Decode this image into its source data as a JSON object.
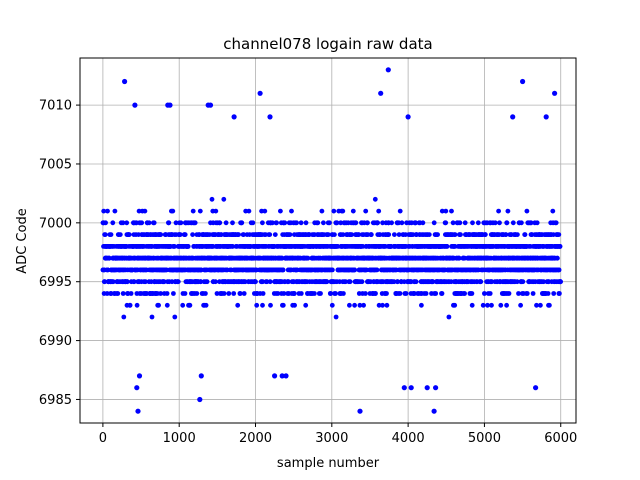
{
  "chart_data": {
    "type": "scatter",
    "title": "channel078 logain raw data",
    "xlabel": "sample number",
    "ylabel": "ADC Code",
    "xlim": [
      -300,
      6200
    ],
    "ylim": [
      6983,
      7014
    ],
    "xticks": [
      0,
      1000,
      2000,
      3000,
      4000,
      5000,
      6000
    ],
    "yticks": [
      6985,
      6990,
      6995,
      7000,
      7005,
      7010
    ],
    "grid": true,
    "marker_color": "#0000ff",
    "sample_count": 6000,
    "baseline": 6997,
    "dense_range": [
      6991,
      7003
    ],
    "outliers": [
      {
        "x": 285,
        "y": 7012
      },
      {
        "x": 420,
        "y": 7010
      },
      {
        "x": 445,
        "y": 6986
      },
      {
        "x": 460,
        "y": 6984
      },
      {
        "x": 480,
        "y": 6987
      },
      {
        "x": 850,
        "y": 7010
      },
      {
        "x": 880,
        "y": 7010
      },
      {
        "x": 1270,
        "y": 6985
      },
      {
        "x": 1290,
        "y": 6987
      },
      {
        "x": 1380,
        "y": 7010
      },
      {
        "x": 1410,
        "y": 7010
      },
      {
        "x": 1720,
        "y": 7009
      },
      {
        "x": 2060,
        "y": 7011
      },
      {
        "x": 2190,
        "y": 7009
      },
      {
        "x": 2250,
        "y": 6987
      },
      {
        "x": 2350,
        "y": 6987
      },
      {
        "x": 2400,
        "y": 6987
      },
      {
        "x": 3370,
        "y": 6984
      },
      {
        "x": 3640,
        "y": 7011
      },
      {
        "x": 3740,
        "y": 7013
      },
      {
        "x": 3950,
        "y": 6986
      },
      {
        "x": 4000,
        "y": 7009
      },
      {
        "x": 4040,
        "y": 6986
      },
      {
        "x": 4250,
        "y": 6986
      },
      {
        "x": 4340,
        "y": 6984
      },
      {
        "x": 4360,
        "y": 6986
      },
      {
        "x": 5370,
        "y": 7009
      },
      {
        "x": 5500,
        "y": 7012
      },
      {
        "x": 5670,
        "y": 6986
      },
      {
        "x": 5810,
        "y": 7009
      },
      {
        "x": 5920,
        "y": 7011
      }
    ]
  }
}
